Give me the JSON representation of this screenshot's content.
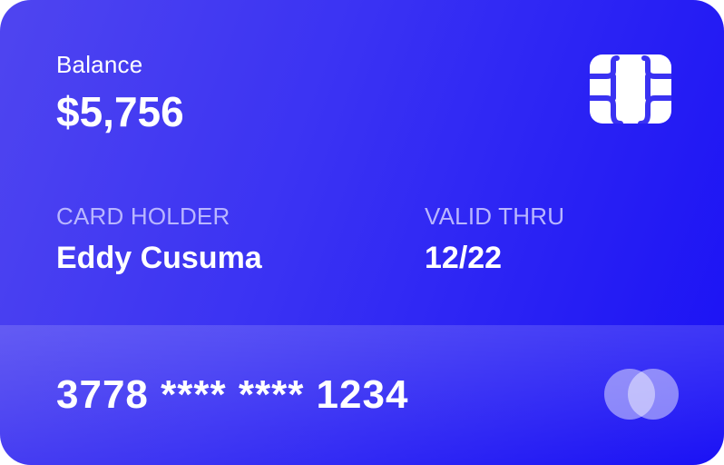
{
  "card": {
    "balance_label": "Balance",
    "balance_value": "$5,756",
    "holder_label": "CARD HOLDER",
    "holder_name": "Eddy Cusuma",
    "valid_label": "VALID THRU",
    "valid_value": "12/22",
    "number": "3778 **** **** 1234"
  },
  "icons": {
    "chip": "chip-icon",
    "brand": "mastercard-logo-icon"
  },
  "colors": {
    "gradient_start": "#4f45f0",
    "gradient_end": "#1a11f5",
    "muted_text": "#b9b6ff",
    "text": "#ffffff"
  }
}
